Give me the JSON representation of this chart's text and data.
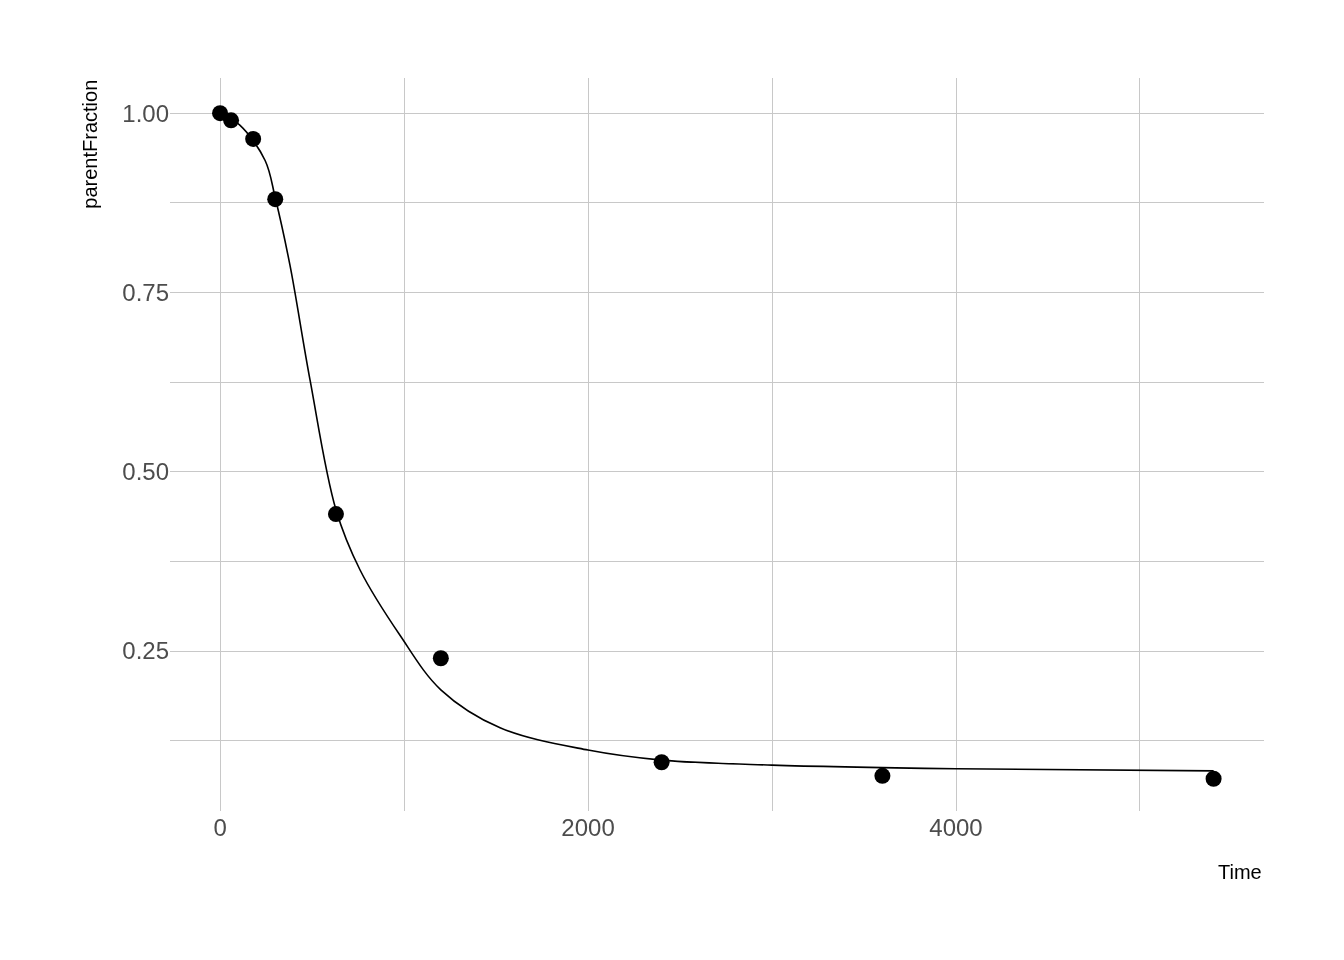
{
  "chart_data": {
    "type": "scatter",
    "xlabel": "Time",
    "ylabel": "parentFraction",
    "series": [
      {
        "color": "#000000",
        "marker": "circle",
        "x": [
          0,
          60,
          180,
          300,
          630,
          1200,
          2400,
          3600,
          5400
        ],
        "values": [
          1.0,
          0.99,
          0.964,
          0.88,
          0.441,
          0.24,
          0.095,
          0.076,
          0.072
        ]
      },
      {
        "type": "line",
        "color": "#000000",
        "marker": "none",
        "line_style": "solid",
        "x": [
          0,
          109,
          245,
          300,
          380,
          489,
          630,
          761,
          978,
          1200,
          1522,
          2000,
          2400,
          3000,
          4000,
          5400
        ],
        "values": [
          1.0,
          0.983,
          0.934,
          0.882,
          0.788,
          0.628,
          0.447,
          0.363,
          0.272,
          0.196,
          0.143,
          0.112,
          0.098,
          0.091,
          0.086,
          0.083
        ]
      }
    ],
    "xlim": [
      -272,
      5674
    ],
    "ylim": [
      0.027,
      1.049
    ],
    "xticks": [
      0,
      {
        "value": 1000,
        "label": null
      },
      2000,
      {
        "value": 3000,
        "label": null
      },
      4000,
      {
        "value": 5000,
        "label": null
      }
    ],
    "yticks": [
      {
        "value": 0.125,
        "label": null
      },
      {
        "value": 0.25,
        "label": "0.25"
      },
      {
        "value": 0.375,
        "label": null
      },
      {
        "value": 0.5,
        "label": "0.50"
      },
      {
        "value": 0.625,
        "label": null
      },
      {
        "value": 0.75,
        "label": "0.75"
      },
      {
        "value": 0.875,
        "label": null
      },
      {
        "value": 1.0,
        "label": "1.00"
      }
    ],
    "grid": true
  }
}
